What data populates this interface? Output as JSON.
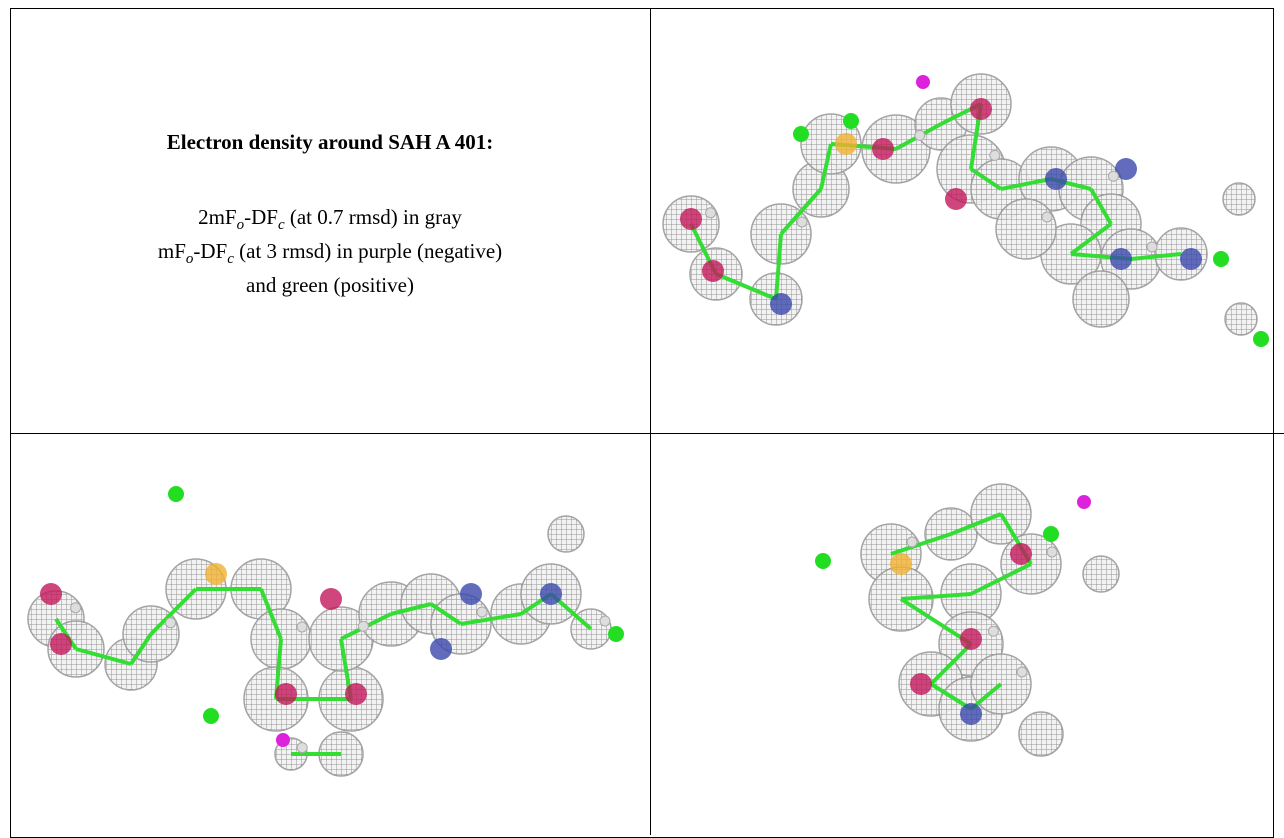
{
  "caption": {
    "title": "Electron density around SAH A 401:",
    "lines": [
      [
        {
          "text": "2mF"
        },
        {
          "text": "o",
          "sub": true
        },
        {
          "text": "-DF"
        },
        {
          "text": "c",
          "sub": true
        },
        {
          "text": " (at 0.7 rmsd) in gray"
        }
      ],
      [
        {
          "text": "mF"
        },
        {
          "text": "o",
          "sub": true
        },
        {
          "text": "-DF"
        },
        {
          "text": "c",
          "sub": true
        },
        {
          "text": " (at 3 rmsd) in purple (negative)"
        }
      ],
      [
        {
          "text": "and green (positive)"
        }
      ]
    ]
  }
}
